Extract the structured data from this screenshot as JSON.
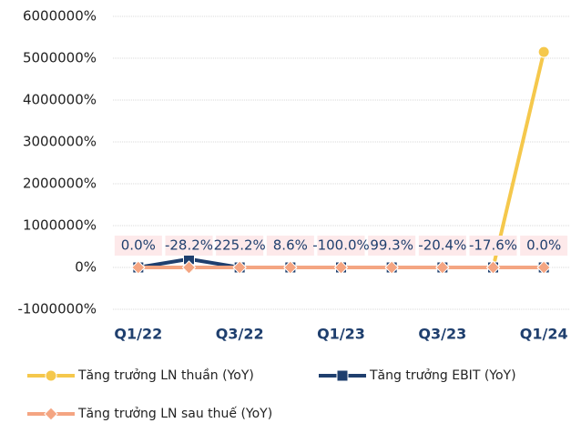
{
  "chart_data": {
    "type": "line",
    "categories": [
      "Q1/22",
      null,
      "Q3/22",
      null,
      "Q1/23",
      null,
      "Q3/23",
      null,
      "Q1/24"
    ],
    "series": [
      {
        "name": "Tăng trưởng LN thuần (YoY)",
        "color": "#f5c84c",
        "marker": "circle",
        "values": [
          0,
          0,
          0,
          0,
          0,
          0,
          0,
          0,
          5150000
        ]
      },
      {
        "name": "Tăng trưởng EBIT (YoY)",
        "color": "#1f3f6e",
        "marker": "square",
        "values": [
          0,
          200000,
          0,
          0,
          0,
          0,
          0,
          0,
          0
        ]
      },
      {
        "name": "Tăng trưởng LN sau thuế (YoY)",
        "color": "#f4a582",
        "marker": "diamond",
        "values": [
          0,
          -28.2,
          225.2,
          8.6,
          -100,
          99.3,
          -20.4,
          -17.6,
          0
        ],
        "value_labels": [
          "0.0%",
          "-28.2%",
          "225.2%",
          "8.6%",
          "-100.0%",
          "99.3%",
          "-20.4%",
          "-17.6%",
          "0.0%"
        ]
      }
    ],
    "ylim": [
      -1000000,
      6000000
    ],
    "yticks": [
      {
        "value": -1000000,
        "label": "-1000000%"
      },
      {
        "value": 0,
        "label": "0%"
      },
      {
        "value": 1000000,
        "label": "1000000%"
      },
      {
        "value": 2000000,
        "label": "2000000%"
      },
      {
        "value": 3000000,
        "label": "3000000%"
      },
      {
        "value": 4000000,
        "label": "4000000%"
      },
      {
        "value": 5000000,
        "label": "5000000%"
      },
      {
        "value": 6000000,
        "label": "6000000%"
      }
    ],
    "grid": true
  }
}
